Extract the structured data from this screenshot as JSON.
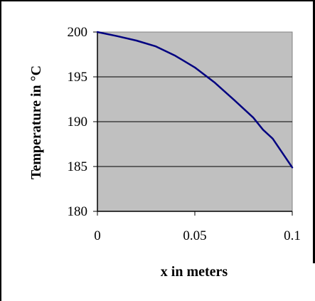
{
  "chart_data": {
    "type": "line",
    "title": "",
    "xlabel": "x in meters",
    "ylabel": "Temperature in °C",
    "xlim": [
      0,
      0.1
    ],
    "ylim": [
      180,
      200
    ],
    "x_ticks": [
      "0",
      "0.05",
      "0.1"
    ],
    "y_ticks": [
      "200",
      "195",
      "190",
      "185",
      "180"
    ],
    "grid": "horizontal",
    "legend": "none",
    "plot_background": "#C0C0C0",
    "series": [
      {
        "x": [
          0,
          0.01,
          0.02,
          0.03,
          0.04,
          0.05,
          0.06,
          0.07,
          0.08,
          0.085,
          0.09,
          0.1
        ],
        "y": [
          200,
          199.55,
          199.05,
          198.4,
          197.35,
          196.05,
          194.4,
          192.45,
          190.45,
          189.1,
          188.1,
          184.9
        ],
        "color": "#000080"
      }
    ]
  }
}
